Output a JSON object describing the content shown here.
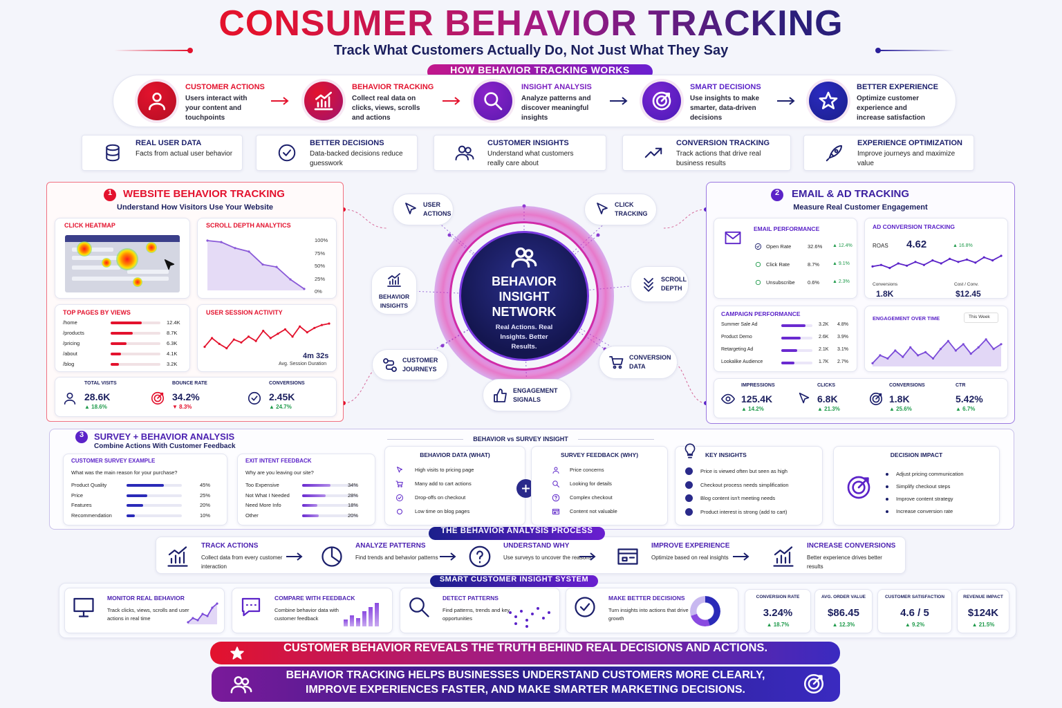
{
  "header": {
    "title": "CONSUMER BEHAVIOR TRACKING",
    "subtitle": "Track What Customers Actually Do, Not Just What They Say",
    "section": "HOW BEHAVIOR TRACKING WORKS"
  },
  "steps": [
    {
      "title": "CUSTOMER ACTIONS",
      "text": "Users interact with your content and touchpoints"
    },
    {
      "title": "BEHAVIOR TRACKING",
      "text": "Collect real data on clicks, views, scrolls and actions"
    },
    {
      "title": "INSIGHT ANALYSIS",
      "text": "Analyze patterns and discover meaningful insights"
    },
    {
      "title": "SMART DECISIONS",
      "text": "Use insights to make smarter, data-driven decisions"
    },
    {
      "title": "BETTER EXPERIENCE",
      "text": "Optimize customer experience and increase satisfaction"
    }
  ],
  "benefits": [
    {
      "title": "REAL USER DATA",
      "text": "Facts from actual user behavior"
    },
    {
      "title": "BETTER DECISIONS",
      "text": "Data-backed decisions reduce guesswork"
    },
    {
      "title": "CUSTOMER INSIGHTS",
      "text": "Understand what customers really care about"
    },
    {
      "title": "CONVERSION TRACKING",
      "text": "Track actions that drive real business results"
    },
    {
      "title": "EXPERIENCE OPTIMIZATION",
      "text": "Improve journeys and maximize value"
    }
  ],
  "website": {
    "number": "1",
    "title": "WEBSITE BEHAVIOR TRACKING",
    "subtitle": "Understand How Visitors Use Your Website",
    "heatmap": {
      "title": "CLICK HEATMAP"
    },
    "scroll": {
      "title": "SCROLL DEPTH ANALYTICS",
      "ticks": [
        "100%",
        "75%",
        "50%",
        "25%",
        "0%"
      ]
    },
    "pages": {
      "title": "TOP PAGES BY VIEWS",
      "rows": [
        {
          "name": "/home",
          "value": 12400,
          "label": "12.4K"
        },
        {
          "name": "/products",
          "value": 8700,
          "label": "8.7K"
        },
        {
          "name": "/pricing",
          "value": 6300,
          "label": "6.3K"
        },
        {
          "name": "/about",
          "value": 4100,
          "label": "4.1K"
        },
        {
          "name": "/blog",
          "value": 3200,
          "label": "3.2K"
        }
      ]
    },
    "session": {
      "title": "USER SESSION ACTIVITY",
      "value": "4m 32s",
      "caption": "Avg. Session Duration"
    },
    "kpis": [
      {
        "label": "TOTAL VISITS",
        "value": "28.6K",
        "change": "▲ 18.6%"
      },
      {
        "label": "BOUNCE RATE",
        "value": "34.2%",
        "change": "▼ 8.3%"
      },
      {
        "label": "CONVERSIONS",
        "value": "2.45K",
        "change": "▲ 24.7%"
      }
    ]
  },
  "network": {
    "title": "BEHAVIOR INSIGHT NETWORK",
    "tagline": "Real Actions. Real Insights. Better Results.",
    "nodes": [
      "USER ACTIONS",
      "CLICK TRACKING",
      "BEHAVIOR INSIGHTS",
      "SCROLL DEPTH",
      "CUSTOMER JOURNEYS",
      "CONVERSION DATA",
      "ENGAGEMENT SIGNALS"
    ]
  },
  "email": {
    "number": "2",
    "title": "EMAIL & AD TRACKING",
    "subtitle": "Measure Real Customer Engagement",
    "performance": {
      "title": "EMAIL PERFORMANCE",
      "rows": [
        {
          "name": "Open Rate",
          "value": "32.6%",
          "change": "▲ 12.4%"
        },
        {
          "name": "Click Rate",
          "value": "8.7%",
          "change": "▲ 9.1%"
        },
        {
          "name": "Unsubscribe",
          "value": "0.6%",
          "change": "▲ 2.3%"
        }
      ]
    },
    "ad": {
      "title": "AD CONVERSION TRACKING",
      "roas_label": "ROAS",
      "roas": "4.62",
      "change": "▲ 16.8%",
      "conv_label": "Conversions",
      "conv": "1.8K",
      "cost_label": "Cost / Conv.",
      "cost": "$12.45"
    },
    "campaign": {
      "title": "CAMPAIGN PERFORMANCE",
      "rows": [
        {
          "name": "Summer Sale Ad",
          "value": 3200,
          "label": "3.2K",
          "rate": "4.8%"
        },
        {
          "name": "Product Demo",
          "value": 2600,
          "label": "2.6K",
          "rate": "3.9%"
        },
        {
          "name": "Retargeting Ad",
          "value": 2100,
          "label": "2.1K",
          "rate": "3.1%"
        },
        {
          "name": "Lookalike Audience",
          "value": 1700,
          "label": "1.7K",
          "rate": "2.7%"
        }
      ]
    },
    "engagement": {
      "title": "ENGAGEMENT OVER TIME",
      "period": "This Week"
    },
    "kpis": [
      {
        "label": "IMPRESSIONS",
        "value": "125.4K",
        "change": "▲ 14.2%"
      },
      {
        "label": "CLICKS",
        "value": "6.8K",
        "change": "▲ 21.3%"
      },
      {
        "label": "CONVERSIONS",
        "value": "1.8K",
        "change": "▲ 25.6%"
      },
      {
        "label": "CTR",
        "value": "5.42%",
        "change": "▲ 6.7%"
      }
    ]
  },
  "survey": {
    "number": "3",
    "title": "SURVEY + BEHAVIOR ANALYSIS",
    "subtitle": "Combine Actions With Customer Feedback",
    "customer": {
      "title": "CUSTOMER SURVEY EXAMPLE",
      "question": "What was the main reason for your purchase?",
      "rows": [
        {
          "name": "Product Quality",
          "value": 45,
          "label": "45%"
        },
        {
          "name": "Price",
          "value": 25,
          "label": "25%"
        },
        {
          "name": "Features",
          "value": 20,
          "label": "20%"
        },
        {
          "name": "Recommendation",
          "value": 10,
          "label": "10%"
        }
      ]
    },
    "exit": {
      "title": "EXIT INTENT FEEDBACK",
      "question": "Why are you leaving our site?",
      "rows": [
        {
          "name": "Too Expensive",
          "value": 34,
          "label": "34%"
        },
        {
          "name": "Not What I Needed",
          "value": 28,
          "label": "28%"
        },
        {
          "name": "Need More Info",
          "value": 18,
          "label": "18%"
        },
        {
          "name": "Other",
          "value": 20,
          "label": "20%"
        }
      ]
    },
    "compare_title": "BEHAVIOR vs SURVEY INSIGHT",
    "behavior": {
      "title": "BEHAVIOR DATA (WHAT)",
      "items": [
        "High visits to pricing page",
        "Many add to cart actions",
        "Drop-offs on checkout",
        "Low time on blog pages"
      ]
    },
    "feedback": {
      "title": "SURVEY FEEDBACK (WHY)",
      "items": [
        "Price concerns",
        "Looking for details",
        "Complex checkout",
        "Content not valuable"
      ]
    },
    "insights": {
      "title": "KEY INSIGHTS",
      "items": [
        "Price is viewed often but seen as high",
        "Checkout process needs simplification",
        "Blog content isn't meeting needs",
        "Product interest is strong (add to cart)"
      ]
    },
    "impact": {
      "title": "DECISION IMPACT",
      "items": [
        "Adjust pricing communication",
        "Simplify checkout steps",
        "Improve content strategy",
        "Increase conversion rate"
      ]
    }
  },
  "process": {
    "title": "THE BEHAVIOR ANALYSIS PROCESS",
    "steps": [
      {
        "title": "TRACK ACTIONS",
        "text": "Collect data from every customer interaction"
      },
      {
        "title": "ANALYZE PATTERNS",
        "text": "Find trends and behavior patterns"
      },
      {
        "title": "UNDERSTAND WHY",
        "text": "Use surveys to uncover the reasons"
      },
      {
        "title": "IMPROVE EXPERIENCE",
        "text": "Optimize based on real insights"
      },
      {
        "title": "INCREASE CONVERSIONS",
        "text": "Better experience drives better results"
      }
    ]
  },
  "system": {
    "title": "SMART CUSTOMER INSIGHT SYSTEM",
    "items": [
      {
        "title": "MONITOR REAL BEHAVIOR",
        "text": "Track clicks, views, scrolls and user actions in real time"
      },
      {
        "title": "COMPARE WITH FEEDBACK",
        "text": "Combine behavior data with customer feedback"
      },
      {
        "title": "DETECT PATTERNS",
        "text": "Find patterns, trends and key opportunities"
      },
      {
        "title": "MAKE BETTER DECISIONS",
        "text": "Turn insights into actions that drive growth"
      }
    ],
    "metrics": [
      {
        "label": "CONVERSION RATE",
        "value": "3.24%",
        "change": "▲ 18.7%"
      },
      {
        "label": "AVG. ORDER VALUE",
        "value": "$86.45",
        "change": "▲ 12.3%"
      },
      {
        "label": "CUSTOMER SATISFACTION",
        "value": "4.6 / 5",
        "change": "▲ 9.2%"
      },
      {
        "label": "REVENUE IMPACT",
        "value": "$124K",
        "change": "▲ 21.5%"
      }
    ]
  },
  "banners": [
    "CUSTOMER BEHAVIOR REVEALS THE TRUTH BEHIND REAL DECISIONS AND ACTIONS.",
    "BEHAVIOR TRACKING HELPS BUSINESSES UNDERSTAND CUSTOMERS MORE CLEARLY, IMPROVE EXPERIENCES FASTER, AND MAKE SMARTER MARKETING DECISIONS."
  ]
}
